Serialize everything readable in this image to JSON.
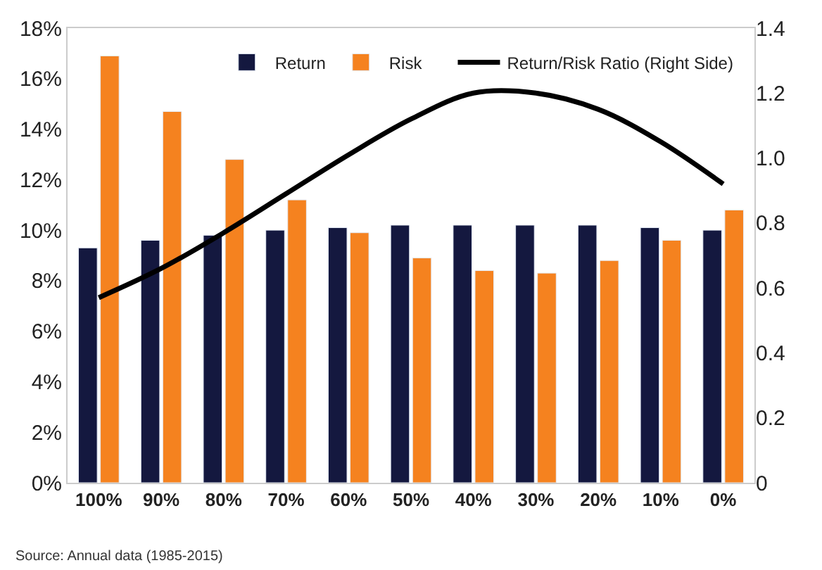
{
  "chart_data": {
    "type": "bar",
    "categories": [
      "100%",
      "90%",
      "80%",
      "70%",
      "60%",
      "50%",
      "40%",
      "30%",
      "20%",
      "10%",
      "0%"
    ],
    "series": [
      {
        "name": "Return",
        "color": "#14183f",
        "values": [
          9.3,
          9.6,
          9.8,
          10.0,
          10.1,
          10.2,
          10.2,
          10.2,
          10.2,
          10.1,
          10.0
        ]
      },
      {
        "name": "Risk",
        "color": "#f5821f",
        "values": [
          16.9,
          14.7,
          12.8,
          11.2,
          9.9,
          8.9,
          8.4,
          8.3,
          8.8,
          9.6,
          10.8
        ]
      },
      {
        "name": "Return/Risk Ratio (Right Side)",
        "type": "line",
        "axis": "y2",
        "color": "#000000",
        "values": [
          0.57,
          0.66,
          0.77,
          0.89,
          1.01,
          1.12,
          1.2,
          1.2,
          1.15,
          1.05,
          0.92
        ]
      }
    ],
    "ylim": [
      0,
      18
    ],
    "yticks": [
      {
        "value": 0,
        "label": "0%"
      },
      {
        "value": 2,
        "label": "2%"
      },
      {
        "value": 4,
        "label": "4%"
      },
      {
        "value": 6,
        "label": "6%"
      },
      {
        "value": 8,
        "label": "8%"
      },
      {
        "value": 10,
        "label": "10%"
      },
      {
        "value": 12,
        "label": "12%"
      },
      {
        "value": 14,
        "label": "14%"
      },
      {
        "value": 16,
        "label": "16%"
      },
      {
        "value": 18,
        "label": "18%"
      }
    ],
    "y2lim": [
      0,
      1.4
    ],
    "y2ticks": [
      0,
      0.2,
      0.4,
      0.6,
      0.8,
      {
        "value": 1,
        "label": "1.0"
      },
      1.2,
      1.4
    ],
    "legend": "top",
    "annotations": [
      "Source: Annual data (1985-2015)"
    ]
  }
}
